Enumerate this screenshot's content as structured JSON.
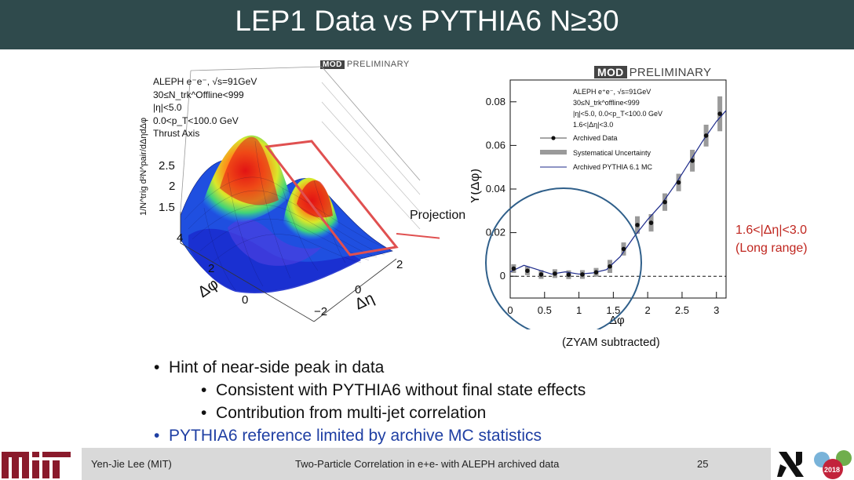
{
  "header": {
    "title": "LEP1 Data vs PYTHIA6 N≥30",
    "bar_color": "#2f4a4c"
  },
  "left_plot": {
    "logo_mod": "MOD",
    "logo_prelim": "PRELIMINARY",
    "info_lines": [
      "ALEPH e⁻e⁻, √s=91GeV",
      "30≤N_trk^Offline<999",
      "|η|<5.0",
      "0.0<p_T<100.0 GeV",
      "Thrust Axis"
    ],
    "zlabel": "1/N^trig d²N^pair/dΔηdΔφ",
    "z_ticks": [
      "1.5",
      "2",
      "2.5"
    ],
    "phi_ticks": [
      "0",
      "2",
      "4"
    ],
    "eta_ticks": [
      "−2",
      "0",
      "2"
    ],
    "phi_label": "Δφ",
    "eta_label": "Δη",
    "projection_label": "Projection"
  },
  "right_plot": {
    "logo_mod": "MOD",
    "logo_prelim": "PRELIMINARY",
    "info_lines": [
      "ALEPH e⁺e⁻, √s=91GeV",
      "30≤N_trk^offline<999",
      "|η|<5.0, 0.0<p_T<100.0 GeV",
      "1.6<|Δη|<3.0"
    ],
    "legend": [
      "Archived Data",
      "Systematical Uncertainty",
      "Archived PYTHIA 6.1 MC"
    ],
    "range_line1": "1.6<|Δη|<3.0",
    "range_line2": "(Long range)",
    "zyam": "(ZYAM subtracted)"
  },
  "chart_data": {
    "type": "scatter",
    "ylabel": "Y(Δφ)",
    "xlabel": "Δφ",
    "xlim": [
      0,
      3.14
    ],
    "ylim": [
      -0.01,
      0.09
    ],
    "x_ticks": [
      "0",
      "0.5",
      "1",
      "1.5",
      "2",
      "2.5",
      "3"
    ],
    "y_ticks": [
      "0",
      "0.02",
      "0.04",
      "0.06",
      "0.08"
    ],
    "series": [
      {
        "name": "Archived Data",
        "x": [
          0.05,
          0.25,
          0.45,
          0.65,
          0.85,
          1.05,
          1.25,
          1.45,
          1.65,
          1.85,
          2.05,
          2.25,
          2.45,
          2.65,
          2.85,
          3.05
        ],
        "y": [
          0.0035,
          0.0025,
          0.0008,
          0.0012,
          0.0007,
          0.0008,
          0.0018,
          0.0045,
          0.0125,
          0.0235,
          0.0245,
          0.034,
          0.043,
          0.053,
          0.0645,
          0.0745
        ],
        "syst": [
          0.002,
          0.002,
          0.002,
          0.002,
          0.002,
          0.002,
          0.002,
          0.003,
          0.003,
          0.004,
          0.004,
          0.004,
          0.004,
          0.005,
          0.005,
          0.008
        ]
      },
      {
        "name": "Archived PYTHIA 6.1 MC",
        "x": [
          0.0,
          0.2,
          0.4,
          0.6,
          0.8,
          1.0,
          1.2,
          1.4,
          1.6,
          1.8,
          2.0,
          2.2,
          2.4,
          2.6,
          2.8,
          3.0,
          3.14
        ],
        "y": [
          0.002,
          0.005,
          0.003,
          0.001,
          0.002,
          0.001,
          0.0015,
          0.003,
          0.009,
          0.018,
          0.026,
          0.033,
          0.042,
          0.052,
          0.062,
          0.071,
          0.076
        ]
      }
    ],
    "colors": {
      "data": "#111111",
      "syst": "#9a9a9a",
      "mc": "#1c2a8a"
    }
  },
  "bullets": [
    "Hint of near-side peak in data",
    "Consistent with PYTHIA6 without final state effects",
    "Contribution from multi-jet correlation",
    "PYTHIA6 reference limited by archive MC statistics"
  ],
  "footer": {
    "author": "Yen-Jie Lee (MIT)",
    "talk": "Two-Particle Correlation in e+e- with ALEPH archived data",
    "page": "25",
    "badge_year": "2018"
  }
}
